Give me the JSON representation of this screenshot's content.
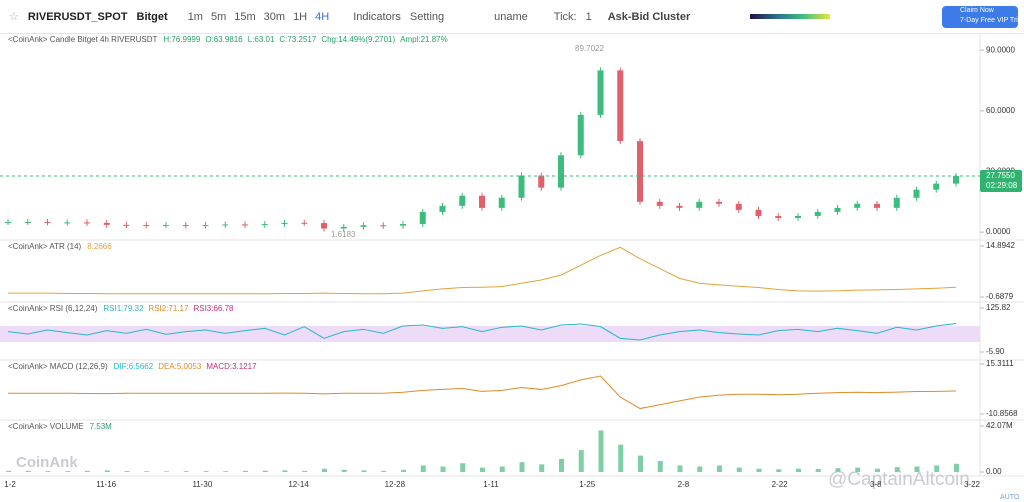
{
  "toolbar": {
    "symbol": "RIVERUSDT_SPOT",
    "exchange": "Bitget",
    "intervals": [
      "1m",
      "5m",
      "15m",
      "30m",
      "1H",
      "4H"
    ],
    "active_interval": "4H",
    "indicators": "Indicators",
    "setting": "Setting",
    "user": "uname",
    "tick_label": "Tick:",
    "tick_value": "1",
    "cluster": "Ask-Bid Cluster",
    "promo_title": "Claim Now",
    "promo_text": "7-Day Free VIP Trial"
  },
  "x_axis": {
    "labels": [
      "1-2",
      "11-16",
      "11-30",
      "12-14",
      "12-28",
      "1-11",
      "1-25",
      "2-8",
      "2-22",
      "3-8",
      "3-22"
    ]
  },
  "watermarks": [
    "CoinAnk",
    "@CaptainAltcoin"
  ],
  "auto": "AUTO",
  "timer": "02:29:08",
  "chart_data": [
    {
      "type": "candlestick",
      "title": "<CoinAnk> Candle  Bitget 4h RIVERUSDT",
      "readouts": [
        "H:76.9999",
        "O:63.9816",
        "L:63.01",
        "C:73.2517",
        "Chg:14.49%(9.2701)",
        "Ampl:21.87%"
      ],
      "readout_color": "#26a269",
      "up_color": "#3dbd7d",
      "down_color": "#e0616b",
      "values": [
        5,
        5,
        4.8,
        4.8,
        4.6,
        3.6,
        3.5,
        3.4,
        3.5,
        3.3,
        3.5,
        3.8,
        3.6,
        4,
        4.6,
        4.5,
        1.8,
        2.6,
        3.4,
        3.2,
        4,
        10,
        13,
        18,
        12,
        17,
        28,
        22,
        38,
        58,
        80,
        45,
        15,
        13,
        12,
        15,
        14,
        11,
        8,
        7,
        8,
        10,
        12,
        14,
        12,
        17,
        21,
        24,
        27.755
      ],
      "high": 89.7022,
      "low": 1.6183,
      "last": {
        "value": 27.755,
        "label": "27.7550"
      },
      "ylim": [
        -2.9,
        97
      ],
      "yticks": [
        {
          "value": 0,
          "label": "0.0000"
        },
        {
          "value": 30,
          "label": "30.0000"
        },
        {
          "value": 60,
          "label": "60.0000"
        },
        {
          "value": 90,
          "label": "90.0000"
        }
      ]
    },
    {
      "type": "line",
      "title": "<CoinAnk> ATR  (14)",
      "readouts": [
        "8.2666"
      ],
      "readout_color": "#e3a33a",
      "color": "#e3a33a",
      "values": [
        0.5,
        0.5,
        0.5,
        0.4,
        0.4,
        0.3,
        0.3,
        0.3,
        0.3,
        0.3,
        0.3,
        0.3,
        0.3,
        0.3,
        0.4,
        0.4,
        0.5,
        0.4,
        0.3,
        0.3,
        0.5,
        1.2,
        1.8,
        2.2,
        2.3,
        2.5,
        3.5,
        4.5,
        6,
        9,
        12,
        14.5,
        11,
        8,
        5,
        3.5,
        3,
        2.6,
        2.2,
        1.6,
        1.2,
        1.1,
        1.2,
        1.4,
        1.5,
        1.6,
        1.8,
        2,
        2.3
      ],
      "ylim": [
        -0.6879,
        14.8942
      ],
      "yticks": [
        -0.6879,
        14.8942
      ]
    },
    {
      "type": "line",
      "title": "<CoinAnk> RSI  (6,12,24)",
      "readouts": [
        "RSI1:79.32",
        "RSI2:71.17",
        "RSI3:66.78"
      ],
      "readout_colors": [
        "#2ab7ca",
        "#e08a2c",
        "#c2327a"
      ],
      "color": "#2ab7ca",
      "values": [
        55,
        48,
        60,
        52,
        45,
        58,
        50,
        62,
        47,
        55,
        60,
        50,
        58,
        65,
        45,
        70,
        35,
        55,
        62,
        50,
        72,
        75,
        65,
        70,
        55,
        68,
        72,
        60,
        75,
        78,
        70,
        35,
        30,
        45,
        55,
        60,
        52,
        48,
        45,
        58,
        62,
        55,
        65,
        58,
        50,
        68,
        60,
        72,
        79.32
      ],
      "ylim": [
        -5.9,
        125.82
      ],
      "yticks": [
        {
          "value": -5.9,
          "label": "-5.90"
        },
        125.82
      ]
    },
    {
      "type": "line",
      "title": "<CoinAnk> MACD  (12,26,9)",
      "readouts": [
        "DIF:6.5662",
        "DEA:5.0053",
        "MACD:3.1217"
      ],
      "readout_colors": [
        "#2ab7ca",
        "#e08a2c",
        "#c2327a"
      ],
      "color": "#e08a2c",
      "values": [
        0,
        0,
        0,
        0,
        -0.1,
        -0.2,
        0,
        0,
        0,
        0,
        0,
        0,
        0,
        0,
        0.1,
        0,
        -0.3,
        0,
        0,
        0,
        0.5,
        1.5,
        2,
        2.5,
        1,
        1.5,
        3,
        2,
        4,
        7,
        9,
        -2,
        -8,
        -6,
        -4,
        -2,
        -1,
        -0.5,
        -0.5,
        -0.8,
        -0.5,
        0,
        0.3,
        0.5,
        0.3,
        0.6,
        0.9,
        1,
        1.2
      ],
      "ylim": [
        -10.8568,
        15.3111
      ],
      "yticks": [
        -10.8568,
        15.3111
      ]
    },
    {
      "type": "bar",
      "title": "<CoinAnk> VOLUME",
      "readouts": [
        "7.53M"
      ],
      "readout_color": "#26a269",
      "color": "#7fcfa6",
      "values": [
        1,
        1,
        0.8,
        0.8,
        1,
        1.5,
        0.8,
        0.7,
        0.6,
        0.7,
        0.8,
        0.7,
        1,
        1.2,
        1.5,
        1,
        3,
        2,
        1.5,
        1,
        2,
        6,
        5,
        8,
        4,
        5,
        9,
        7,
        12,
        20,
        38,
        25,
        15,
        10,
        6,
        5,
        6,
        4,
        3,
        2.5,
        3,
        2.8,
        3.5,
        4,
        3,
        4.5,
        5,
        6,
        7.53
      ],
      "ylim": [
        0,
        42.07
      ],
      "yticks": [
        {
          "value": 0,
          "label": "0.00"
        },
        {
          "value": 42.07,
          "label": "42.07M"
        }
      ]
    }
  ]
}
